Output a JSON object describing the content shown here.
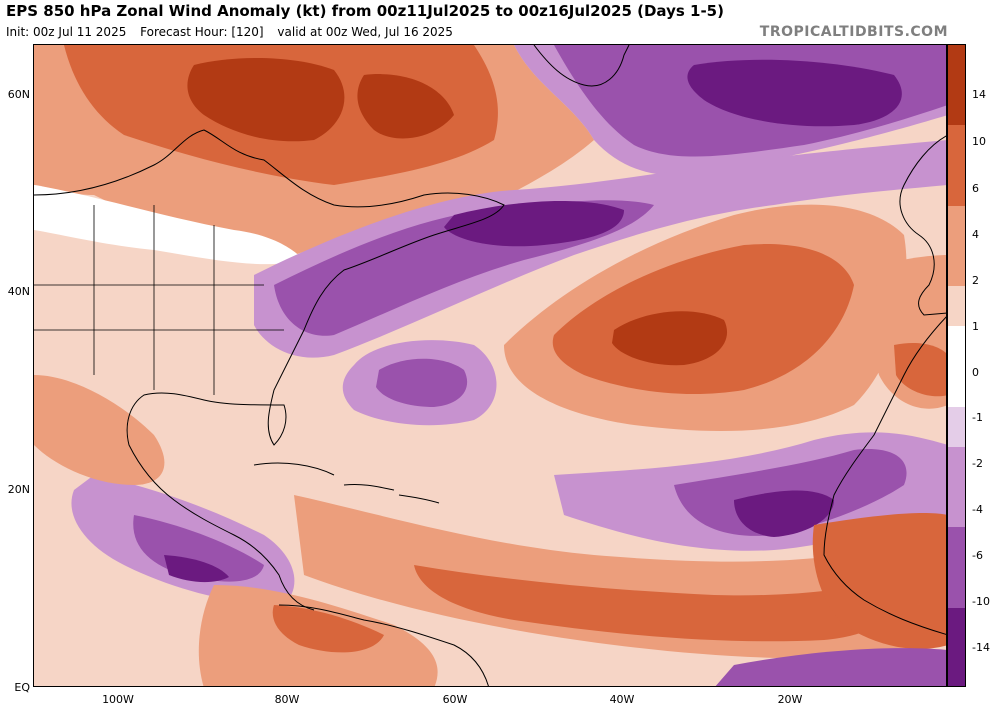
{
  "header": {
    "title": "EPS 850 hPa Zonal Wind Anomaly (kt) from 00z11Jul2025 to 00z16Jul2025 (Days 1-5)",
    "init": "Init: 00z Jul 11 2025",
    "forecast_hour": "Forecast Hour: [120]",
    "valid": "valid at 00z Wed, Jul 16 2025",
    "source": "TROPICALTIDBITS.COM"
  },
  "map": {
    "lat_labels": [
      "60N",
      "40N",
      "20N",
      "EQ"
    ],
    "lon_labels": [
      "100W",
      "80W",
      "60W",
      "40W",
      "20W"
    ]
  },
  "colorbar": {
    "labels": [
      "14",
      "10",
      "6",
      "4",
      "2",
      "1",
      "0",
      "-1",
      "-2",
      "-4",
      "-6",
      "-10",
      "-14"
    ],
    "colors": {
      "pos_strong": "#b23a14",
      "pos_mid": "#d8663c",
      "pos_light": "#ec9e7c",
      "pos_pale": "#f6d5c6",
      "neutral": "#ffffff",
      "neg_pale": "#e4cde8",
      "neg_light": "#c792cf",
      "neg_mid": "#9a52ac",
      "neg_strong": "#6b1a80"
    }
  }
}
